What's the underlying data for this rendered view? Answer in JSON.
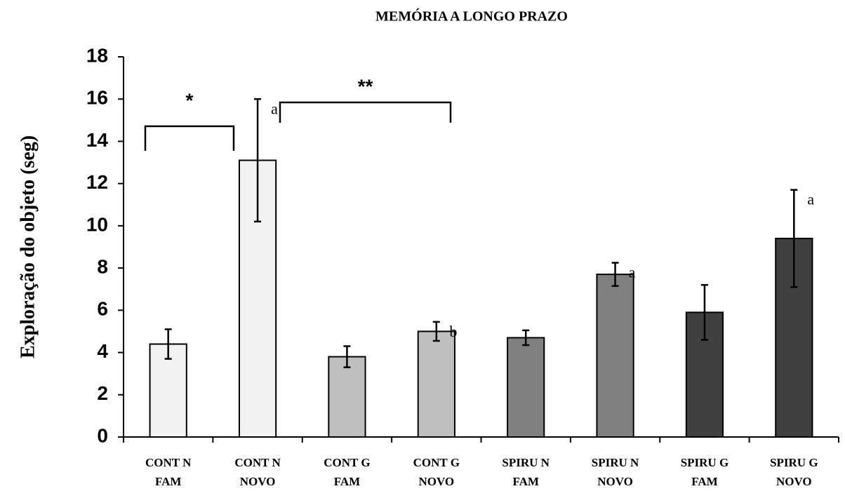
{
  "chart_data": {
    "type": "bar",
    "title": "MEMÓRIA A LONGO PRAZO",
    "y_label": "Exploração do objeto  (seg)",
    "categories": [
      [
        "CONT  N",
        "FAM"
      ],
      [
        "CONT  N",
        "NOVO"
      ],
      [
        "CONT  G",
        "FAM"
      ],
      [
        "CONT  G",
        "NOVO"
      ],
      [
        "SPIRU  N",
        "FAM"
      ],
      [
        "SPIRU  N",
        "NOVO"
      ],
      [
        "SPIRU  G",
        "FAM"
      ],
      [
        "SPIRU  G",
        "NOVO"
      ]
    ],
    "values": [
      4.4,
      13.1,
      3.8,
      5.0,
      4.7,
      7.7,
      5.9,
      9.4
    ],
    "errors": [
      0.7,
      2.9,
      0.5,
      0.45,
      0.35,
      0.55,
      1.3,
      2.3
    ],
    "colors": [
      "#f2f2f2",
      "#f2f2f2",
      "#bfbfbf",
      "#bfbfbf",
      "#808080",
      "#808080",
      "#404040",
      "#404040"
    ],
    "labels": [
      null,
      "a",
      null,
      "b",
      null,
      "a",
      null,
      "a"
    ],
    "brackets": [
      {
        "text": "*",
        "from": 0,
        "to": 1
      },
      {
        "text": "**",
        "from": 1,
        "to": 3
      }
    ],
    "ylim": [
      0,
      18
    ],
    "yticks": [
      0,
      2,
      4,
      6,
      8,
      10,
      12,
      14,
      16,
      18
    ],
    "grid": false
  }
}
